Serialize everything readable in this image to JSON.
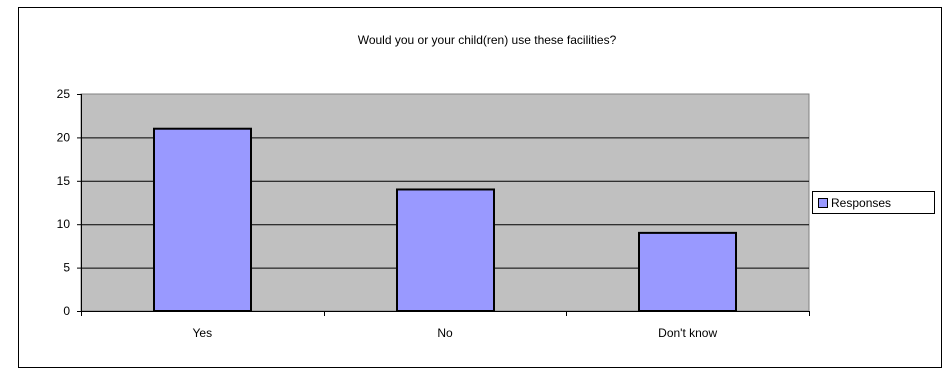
{
  "chart_data": {
    "type": "bar",
    "title": "Would you or your child(ren) use these facilities?",
    "xlabel": "",
    "ylabel": "",
    "categories": [
      "Yes",
      "No",
      "Don't know"
    ],
    "series": [
      {
        "name": "Responses",
        "values": [
          21,
          14,
          9
        ],
        "color": "#9999FF"
      }
    ],
    "ylim": [
      0,
      25
    ],
    "yticks": [
      0,
      5,
      10,
      15,
      20,
      25
    ],
    "grid": true,
    "legend": "right",
    "plot_background": "#C0C0C0"
  }
}
